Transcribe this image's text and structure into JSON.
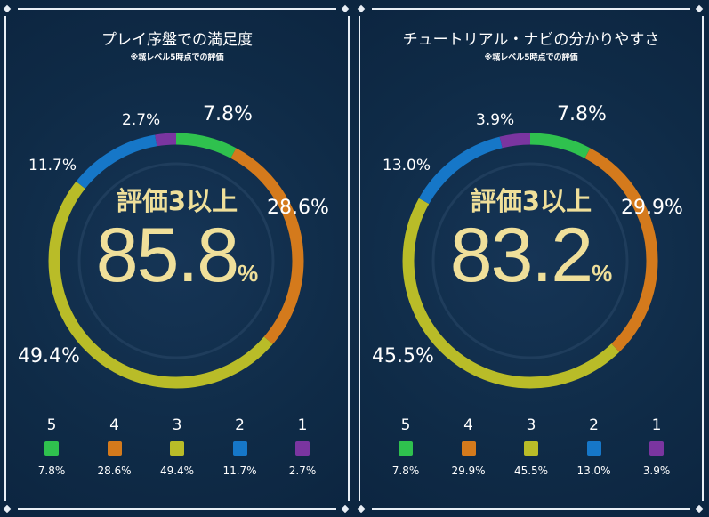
{
  "colors": {
    "5": "#2fc14e",
    "4": "#d47a1c",
    "3": "#b9bc28",
    "2": "#1677c8",
    "1": "#7a35a0",
    "ring_track": "#1f3d5c",
    "accent_text": "#efdf9a"
  },
  "panels": [
    {
      "title": "プレイ序盤での満足度",
      "subtitle": "※城レベル5時点での評価",
      "center_caption": "評価3以上",
      "center_value": "85.8",
      "center_unit": "%",
      "segments": [
        {
          "rating": "5",
          "value": 7.8,
          "label": "7.8%"
        },
        {
          "rating": "4",
          "value": 28.6,
          "label": "28.6%"
        },
        {
          "rating": "3",
          "value": 49.4,
          "label": "49.4%"
        },
        {
          "rating": "2",
          "value": 11.7,
          "label": "11.7%"
        },
        {
          "rating": "1",
          "value": 2.7,
          "label": "2.7%"
        }
      ]
    },
    {
      "title": "チュートリアル・ナビの分かりやすさ",
      "subtitle": "※城レベル5時点での評価",
      "center_caption": "評価3以上",
      "center_value": "83.2",
      "center_unit": "%",
      "segments": [
        {
          "rating": "5",
          "value": 7.8,
          "label": "7.8%"
        },
        {
          "rating": "4",
          "value": 29.9,
          "label": "29.9%"
        },
        {
          "rating": "3",
          "value": 45.5,
          "label": "45.5%"
        },
        {
          "rating": "2",
          "value": 13.0,
          "label": "13.0%"
        },
        {
          "rating": "1",
          "value": 3.9,
          "label": "3.9%"
        }
      ]
    }
  ]
}
